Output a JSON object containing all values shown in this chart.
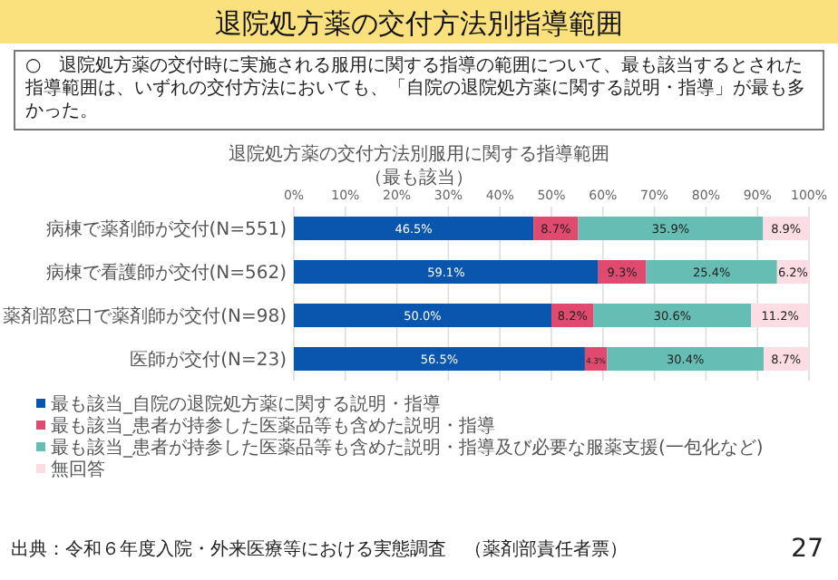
{
  "chart_data": {
    "type": "bar",
    "orientation": "horizontal",
    "stacked": true,
    "title": "退院処方薬の交付方法別指導範囲",
    "subtitle": "退院処方薬の交付方法別服用に関する指導範囲",
    "annotations": [
      "○　退院処方薬の交付時に実施される服用に関する指導の範囲について、最も該当するとされた指導範囲は、いずれの交付方法においても、「自院の退院処方薬に関する説明・指導」が最も多かった。",
      "（最も該当）",
      "出典：令和６年度入院・外来医療等における実態調査　（薬剤部責任者票）",
      "27"
    ],
    "categories": [
      "病棟で薬剤師が交付(N=551)",
      "病棟で看護師が交付(N=562)",
      "薬剤部窓口で薬剤師が交付(N=98)",
      "医師が交付(N=23)"
    ],
    "series": [
      {
        "name": "最も該当_自院の退院処方薬に関する説明・指導",
        "color": "#0a55ad",
        "values": [
          46.5,
          59.1,
          50.0,
          56.5
        ],
        "value_labels": [
          "46.5%",
          "59.1%",
          "50.0%",
          "56.5%"
        ]
      },
      {
        "name": "最も該当_患者が持参した医薬品等も含めた説明・指導",
        "color": "#e04a6e",
        "values": [
          8.7,
          9.3,
          8.2,
          4.3
        ],
        "value_labels": [
          "8.7%",
          "9.3%",
          "8.2%",
          "4.3%"
        ]
      },
      {
        "name": "最も該当_患者が持参した医薬品等も含めた説明・指導及び必要な服薬支援(一包化など)",
        "color": "#66bdb3",
        "values": [
          35.9,
          25.4,
          30.6,
          30.4
        ],
        "value_labels": [
          "35.9%",
          "25.4%",
          "30.6%",
          "30.4%"
        ]
      },
      {
        "name": "無回答",
        "color": "#fcdde3",
        "values": [
          8.9,
          6.2,
          11.2,
          8.7
        ],
        "value_labels": [
          "8.9%",
          "6.2%",
          "11.2%",
          "8.7%"
        ]
      }
    ],
    "xlim": [
      0,
      100
    ],
    "xticks": [
      {
        "value": 0,
        "label": "0%"
      },
      {
        "value": 10,
        "label": "10%"
      },
      {
        "value": 20,
        "label": "20%"
      },
      {
        "value": 30,
        "label": "30%"
      },
      {
        "value": 40,
        "label": "40%"
      },
      {
        "value": 50,
        "label": "50%"
      },
      {
        "value": 60,
        "label": "60%"
      },
      {
        "value": 70,
        "label": "70%"
      },
      {
        "value": 80,
        "label": "80%"
      },
      {
        "value": 90,
        "label": "90%"
      },
      {
        "value": 100,
        "label": "100%"
      }
    ],
    "grid": "x",
    "legend": "bottom"
  }
}
